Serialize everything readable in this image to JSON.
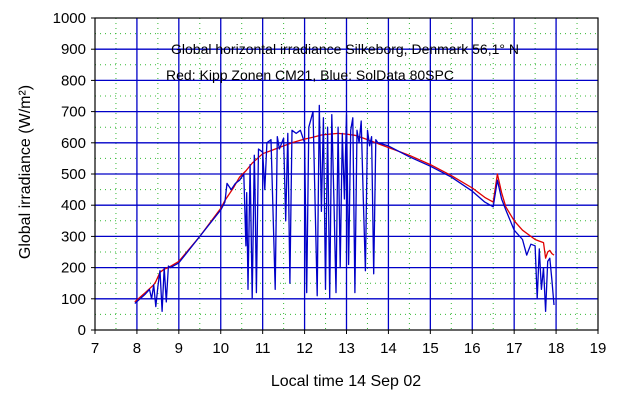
{
  "chart_data": {
    "type": "line",
    "title_line1": "Global horizontal irradiance Silkeborg, Denmark 56,1° N",
    "title_line2": "Red: Kipp Zonen CM21, Blue: SolData 80SPC",
    "xlabel": "Local time 14 Sep 02",
    "ylabel": "Global irradiance (W/m²)",
    "xlim": [
      7,
      19
    ],
    "ylim": [
      0,
      1000
    ],
    "x_ticks": [
      7,
      8,
      9,
      10,
      11,
      12,
      13,
      14,
      15,
      16,
      17,
      18,
      19
    ],
    "y_ticks": [
      0,
      100,
      200,
      300,
      400,
      500,
      600,
      700,
      800,
      900,
      1000
    ],
    "grid": true,
    "colors": {
      "red": "#e00000",
      "blue": "#0000c8",
      "grid": "#0000c8",
      "minor_grid": "#33b833"
    },
    "series": [
      {
        "name": "Kipp Zonen CM21",
        "color": "#e00000",
        "x": [
          7.95,
          8.2,
          8.4,
          8.45,
          8.55,
          8.65,
          8.75,
          9.0,
          9.5,
          10.0,
          10.1,
          10.3,
          10.45,
          10.6,
          10.75,
          11.0,
          11.2,
          11.5,
          11.7,
          11.9,
          12.0,
          12.2,
          12.4,
          12.6,
          12.8,
          13.0,
          13.2,
          13.4,
          13.6,
          13.8,
          14.0,
          14.5,
          15.0,
          15.5,
          16.0,
          16.3,
          16.5,
          16.6,
          16.7,
          16.8,
          17.0,
          17.2,
          17.4,
          17.5,
          17.6,
          17.7,
          17.75,
          17.8,
          17.85,
          17.9,
          17.95
        ],
        "y": [
          90,
          120,
          145,
          155,
          185,
          195,
          200,
          220,
          300,
          390,
          415,
          455,
          490,
          510,
          535,
          565,
          575,
          590,
          600,
          608,
          612,
          618,
          625,
          628,
          630,
          628,
          624,
          615,
          605,
          595,
          585,
          560,
          530,
          495,
          455,
          425,
          410,
          500,
          440,
          395,
          350,
          320,
          300,
          290,
          285,
          280,
          230,
          250,
          255,
          245,
          240
        ]
      },
      {
        "name": "SolData 80SPC",
        "color": "#0000c8",
        "x": [
          7.95,
          8.2,
          8.3,
          8.35,
          8.4,
          8.45,
          8.5,
          8.55,
          8.6,
          8.65,
          8.7,
          8.75,
          8.8,
          9.0,
          9.5,
          10.0,
          10.1,
          10.15,
          10.25,
          10.35,
          10.45,
          10.55,
          10.6,
          10.62,
          10.65,
          10.7,
          10.75,
          10.8,
          10.82,
          10.85,
          10.9,
          11.0,
          11.05,
          11.1,
          11.2,
          11.3,
          11.35,
          11.4,
          11.5,
          11.55,
          11.6,
          11.65,
          11.7,
          11.8,
          11.9,
          12.0,
          12.05,
          12.1,
          12.2,
          12.3,
          12.35,
          12.4,
          12.45,
          12.5,
          12.55,
          12.6,
          12.65,
          12.7,
          12.75,
          12.8,
          12.85,
          12.9,
          12.95,
          13.0,
          13.05,
          13.1,
          13.15,
          13.2,
          13.25,
          13.3,
          13.35,
          13.4,
          13.45,
          13.5,
          13.55,
          13.6,
          13.65,
          13.7,
          13.75,
          13.8,
          14.0,
          14.5,
          15.0,
          15.5,
          16.0,
          16.3,
          16.5,
          16.6,
          16.7,
          16.8,
          17.0,
          17.2,
          17.3,
          17.4,
          17.5,
          17.55,
          17.6,
          17.65,
          17.7,
          17.75,
          17.8,
          17.85,
          17.9,
          17.95
        ],
        "y": [
          85,
          115,
          130,
          100,
          145,
          75,
          140,
          190,
          60,
          200,
          90,
          205,
          200,
          215,
          300,
          385,
          410,
          470,
          450,
          470,
          480,
          500,
          270,
          440,
          130,
          530,
          100,
          560,
          430,
          120,
          580,
          570,
          450,
          600,
          610,
          130,
          620,
          580,
          615,
          350,
          630,
          150,
          640,
          630,
          640,
          600,
          120,
          650,
          700,
          110,
          720,
          380,
          680,
          130,
          650,
          100,
          690,
          420,
          120,
          650,
          200,
          630,
          420,
          690,
          210,
          640,
          680,
          120,
          640,
          600,
          670,
          420,
          190,
          640,
          590,
          620,
          180,
          610,
          600,
          598,
          590,
          555,
          525,
          490,
          445,
          410,
          395,
          480,
          420,
          385,
          320,
          290,
          240,
          275,
          270,
          100,
          260,
          130,
          200,
          60,
          220,
          230,
          160,
          80
        ]
      }
    ]
  }
}
